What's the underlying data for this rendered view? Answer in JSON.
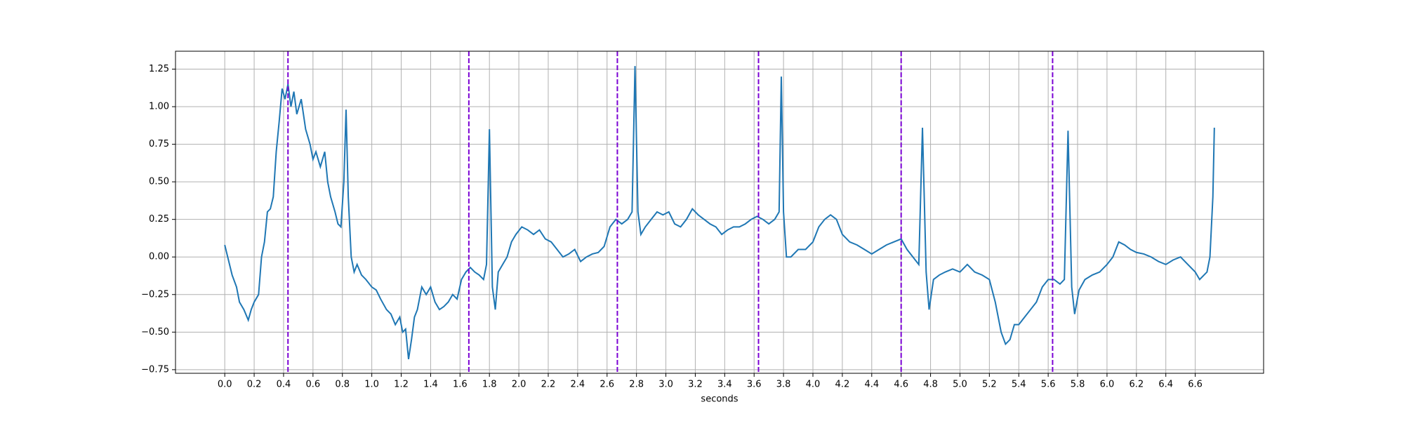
{
  "chart_data": {
    "type": "line",
    "x_label": "seconds",
    "x": [
      0.0,
      0.02,
      0.05,
      0.08,
      0.1,
      0.13,
      0.16,
      0.18,
      0.2,
      0.23,
      0.25,
      0.27,
      0.29,
      0.31,
      0.33,
      0.35,
      0.37,
      0.39,
      0.41,
      0.43,
      0.45,
      0.47,
      0.49,
      0.52,
      0.55,
      0.58,
      0.6,
      0.62,
      0.65,
      0.68,
      0.7,
      0.72,
      0.75,
      0.77,
      0.79,
      0.81,
      0.825,
      0.84,
      0.86,
      0.88,
      0.9,
      0.93,
      0.96,
      1.0,
      1.03,
      1.06,
      1.1,
      1.13,
      1.16,
      1.19,
      1.21,
      1.23,
      1.25,
      1.27,
      1.29,
      1.31,
      1.34,
      1.37,
      1.4,
      1.43,
      1.46,
      1.49,
      1.52,
      1.55,
      1.58,
      1.61,
      1.64,
      1.67,
      1.7,
      1.73,
      1.76,
      1.78,
      1.8,
      1.82,
      1.84,
      1.86,
      1.89,
      1.92,
      1.95,
      1.98,
      2.02,
      2.06,
      2.1,
      2.14,
      2.18,
      2.22,
      2.26,
      2.3,
      2.34,
      2.38,
      2.42,
      2.46,
      2.5,
      2.54,
      2.58,
      2.62,
      2.66,
      2.7,
      2.74,
      2.77,
      2.79,
      2.81,
      2.83,
      2.86,
      2.9,
      2.94,
      2.98,
      3.02,
      3.06,
      3.1,
      3.14,
      3.18,
      3.22,
      3.26,
      3.3,
      3.34,
      3.38,
      3.42,
      3.46,
      3.5,
      3.54,
      3.58,
      3.62,
      3.66,
      3.7,
      3.74,
      3.77,
      3.785,
      3.8,
      3.82,
      3.85,
      3.9,
      3.95,
      4.0,
      4.04,
      4.08,
      4.12,
      4.16,
      4.2,
      4.25,
      4.3,
      4.35,
      4.4,
      4.45,
      4.5,
      4.55,
      4.6,
      4.64,
      4.68,
      4.72,
      4.745,
      4.77,
      4.79,
      4.82,
      4.86,
      4.9,
      4.95,
      5.0,
      5.05,
      5.1,
      5.15,
      5.2,
      5.24,
      5.28,
      5.31,
      5.34,
      5.37,
      5.4,
      5.44,
      5.48,
      5.52,
      5.56,
      5.6,
      5.64,
      5.68,
      5.71,
      5.735,
      5.76,
      5.78,
      5.81,
      5.85,
      5.9,
      5.95,
      6.0,
      6.04,
      6.08,
      6.12,
      6.16,
      6.2,
      6.25,
      6.3,
      6.35,
      6.4,
      6.45,
      6.5,
      6.55,
      6.6,
      6.63,
      6.66,
      6.68,
      6.7,
      6.72,
      6.73
    ],
    "series": [
      {
        "color": "#1f77b4",
        "values": [
          0.08,
          0.0,
          -0.12,
          -0.2,
          -0.3,
          -0.35,
          -0.42,
          -0.35,
          -0.3,
          -0.25,
          0.0,
          0.1,
          0.3,
          0.32,
          0.4,
          0.7,
          0.9,
          1.12,
          1.05,
          1.15,
          1.0,
          1.1,
          0.95,
          1.05,
          0.85,
          0.75,
          0.65,
          0.7,
          0.6,
          0.7,
          0.5,
          0.4,
          0.3,
          0.22,
          0.2,
          0.5,
          0.98,
          0.4,
          0.0,
          -0.1,
          -0.05,
          -0.12,
          -0.15,
          -0.2,
          -0.22,
          -0.28,
          -0.35,
          -0.38,
          -0.45,
          -0.4,
          -0.5,
          -0.48,
          -0.68,
          -0.55,
          -0.4,
          -0.35,
          -0.2,
          -0.25,
          -0.2,
          -0.3,
          -0.35,
          -0.33,
          -0.3,
          -0.25,
          -0.28,
          -0.15,
          -0.1,
          -0.07,
          -0.1,
          -0.12,
          -0.15,
          -0.05,
          0.85,
          -0.2,
          -0.35,
          -0.1,
          -0.05,
          0.0,
          0.1,
          0.15,
          0.2,
          0.18,
          0.15,
          0.18,
          0.12,
          0.1,
          0.05,
          0.0,
          0.02,
          0.05,
          -0.03,
          0.0,
          0.02,
          0.03,
          0.07,
          0.2,
          0.25,
          0.22,
          0.25,
          0.3,
          1.27,
          0.3,
          0.15,
          0.2,
          0.25,
          0.3,
          0.28,
          0.3,
          0.22,
          0.2,
          0.25,
          0.32,
          0.28,
          0.25,
          0.22,
          0.2,
          0.15,
          0.18,
          0.2,
          0.2,
          0.22,
          0.25,
          0.27,
          0.25,
          0.22,
          0.25,
          0.3,
          1.2,
          0.3,
          0.0,
          0.0,
          0.05,
          0.05,
          0.1,
          0.2,
          0.25,
          0.28,
          0.25,
          0.15,
          0.1,
          0.08,
          0.05,
          0.02,
          0.05,
          0.08,
          0.1,
          0.12,
          0.05,
          0.0,
          -0.05,
          0.86,
          -0.1,
          -0.35,
          -0.15,
          -0.12,
          -0.1,
          -0.08,
          -0.1,
          -0.05,
          -0.1,
          -0.12,
          -0.15,
          -0.3,
          -0.5,
          -0.58,
          -0.55,
          -0.45,
          -0.45,
          -0.4,
          -0.35,
          -0.3,
          -0.2,
          -0.15,
          -0.15,
          -0.18,
          -0.15,
          0.84,
          -0.2,
          -0.38,
          -0.22,
          -0.15,
          -0.12,
          -0.1,
          -0.05,
          0.0,
          0.1,
          0.08,
          0.05,
          0.03,
          0.02,
          0.0,
          -0.03,
          -0.05,
          -0.02,
          0.0,
          -0.05,
          -0.1,
          -0.15,
          -0.12,
          -0.1,
          0.0,
          0.4,
          0.86
        ]
      }
    ],
    "markers": {
      "color": "#7b00d4",
      "x": [
        0.43,
        1.66,
        2.67,
        3.63,
        4.6,
        5.63
      ]
    },
    "xlim": [
      -0.335,
      7.065
    ],
    "ylim": [
      -0.774,
      1.369
    ],
    "grid": true,
    "xticks": [
      {
        "value": 0,
        "label": "0.0"
      },
      0.2,
      0.4,
      0.6,
      0.8,
      {
        "value": 1,
        "label": "1.0"
      },
      1.2,
      1.4,
      1.6,
      1.8,
      {
        "value": 2,
        "label": "2.0"
      },
      2.2,
      2.4,
      2.6,
      2.8,
      {
        "value": 3,
        "label": "3.0"
      },
      3.2,
      3.4,
      3.6,
      3.8,
      {
        "value": 4,
        "label": "4.0"
      },
      4.2,
      4.4,
      4.6,
      4.8,
      {
        "value": 5,
        "label": "5.0"
      },
      5.2,
      5.4,
      5.6,
      5.8,
      {
        "value": 6,
        "label": "6.0"
      },
      6.2,
      6.4,
      6.6
    ],
    "yticks": [
      {
        "value": -0.75,
        "label": "−0.75"
      },
      {
        "value": -0.5,
        "label": "−0.50"
      },
      {
        "value": -0.25,
        "label": "−0.25"
      },
      {
        "value": 0,
        "label": "0.00"
      },
      0.25,
      {
        "value": 0.5,
        "label": "0.50"
      },
      0.75,
      {
        "value": 1,
        "label": "1.00"
      },
      1.25
    ]
  }
}
